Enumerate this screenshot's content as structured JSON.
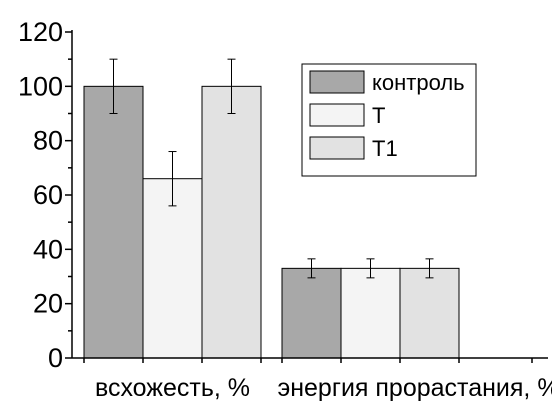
{
  "chart_data": {
    "type": "bar",
    "categories": [
      "всхожесть, %",
      "энергия прорастания, %"
    ],
    "series": [
      {
        "name": "контроль",
        "color": "#a8a8a8",
        "values": [
          100,
          33
        ],
        "errors": [
          10,
          3.5
        ]
      },
      {
        "name": "Т",
        "color": "#f4f4f4",
        "values": [
          66,
          33
        ],
        "errors": [
          10,
          3.5
        ]
      },
      {
        "name": "Т1",
        "color": "#e2e2e2",
        "values": [
          100,
          33
        ],
        "errors": [
          10,
          3.5
        ]
      }
    ],
    "ylim": [
      0,
      120
    ],
    "yticks": [
      0,
      20,
      40,
      60,
      80,
      100,
      120
    ],
    "xlabel": "",
    "ylabel": "",
    "legend_position": "top-right",
    "grid": false
  }
}
